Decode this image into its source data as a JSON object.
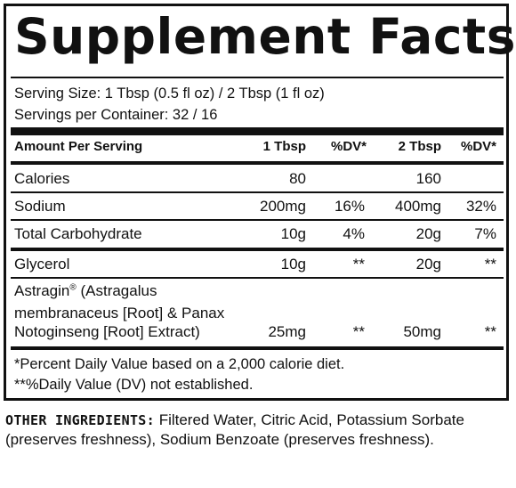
{
  "panel": {
    "title": "Supplement Facts",
    "serving_size": "Serving Size: 1 Tbsp (0.5 fl oz) / 2 Tbsp (1 fl oz)",
    "servings_per_container": "Servings per Container: 32 / 16"
  },
  "table": {
    "headers": {
      "amount": "Amount Per Serving",
      "col1": "1 Tbsp",
      "dv1": "%DV*",
      "col2": "2 Tbsp",
      "dv2": "%DV*"
    },
    "rows": [
      {
        "name": "Calories",
        "v1": "80",
        "dv1": "",
        "v2": "160",
        "dv2": ""
      },
      {
        "name": "Sodium",
        "v1": "200mg",
        "dv1": "16%",
        "v2": "400mg",
        "dv2": "32%"
      },
      {
        "name": "Total Carbohydrate",
        "v1": "10g",
        "dv1": "4%",
        "v2": "20g",
        "dv2": "7%"
      },
      {
        "name": "Glycerol",
        "v1": "10g",
        "dv1": "**",
        "v2": "20g",
        "dv2": "**"
      },
      {
        "name_line1": "Astragin",
        "name_sup": "®",
        "name_line1_rest": " (Astragalus",
        "name_line2": "membranaceus [Root] & Panax",
        "name_line3": "Notoginseng [Root] Extract)",
        "v1": "25mg",
        "dv1": "**",
        "v2": "50mg",
        "dv2": "**"
      }
    ]
  },
  "footnotes": {
    "line1": "*Percent Daily Value based on a 2,000 calorie diet.",
    "line2": "**%Daily Value (DV) not established."
  },
  "other_ingredients": {
    "label": "OTHER INGREDIENTS:",
    "text": " Filtered Water, Citric Acid, Potassium Sorbate (preserves freshness), Sodium Benzoate (preserves freshness)."
  }
}
